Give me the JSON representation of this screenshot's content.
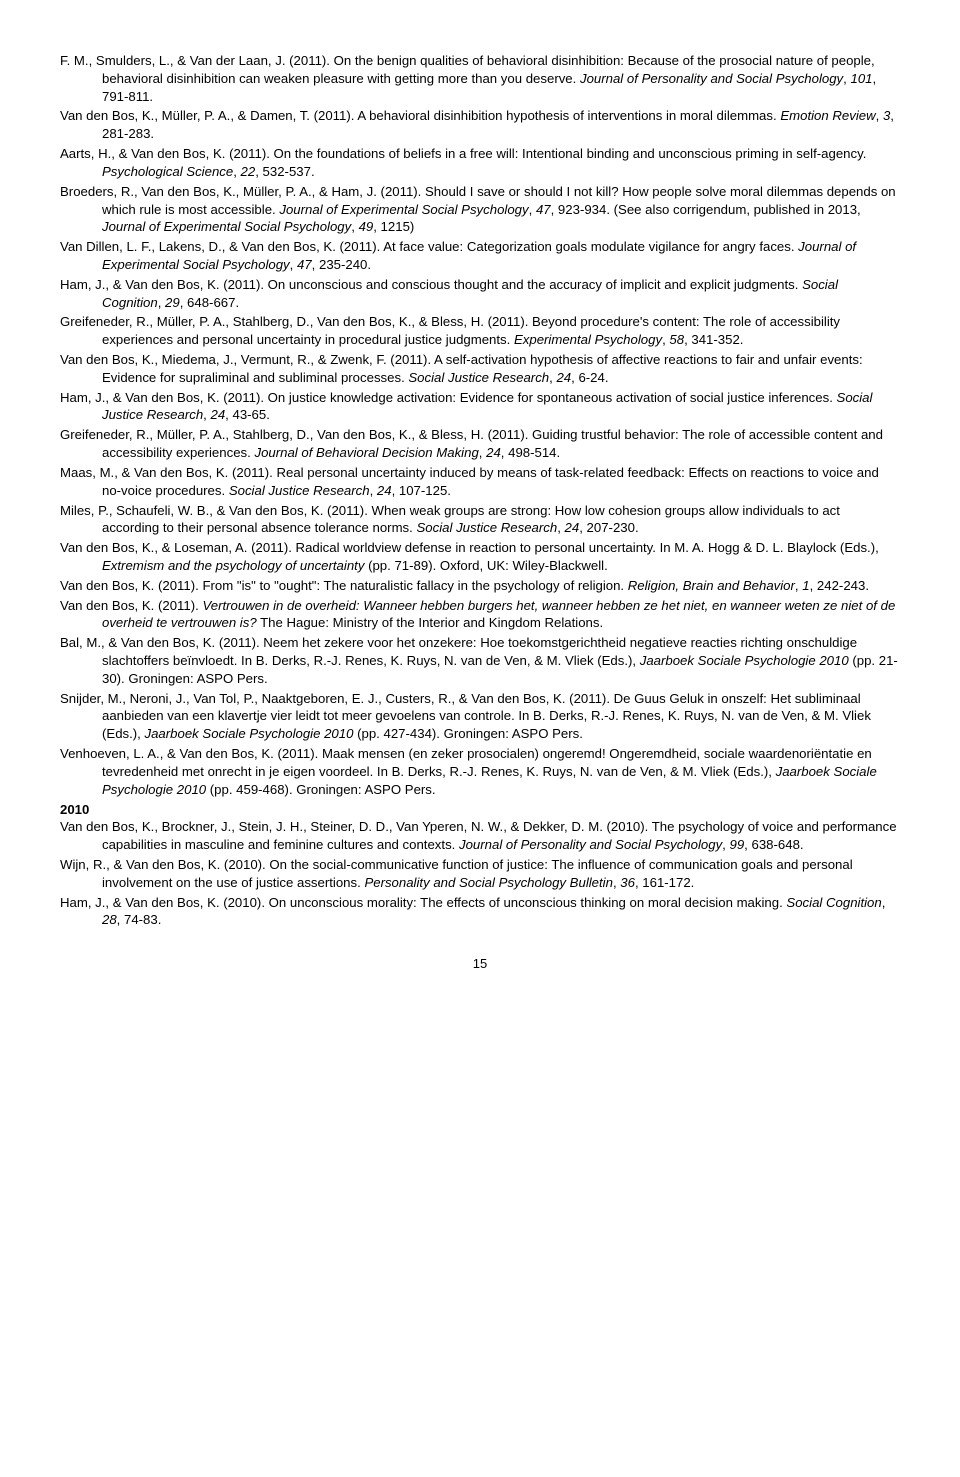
{
  "references": [
    {
      "html": "F. M., Smulders, L., & Van der Laan, J. (2011). On the benign qualities of behavioral disinhibition: Because of the prosocial nature of people, behavioral disinhibition can weaken pleasure with getting more than you deserve. <em>Journal of Personality and Social Psychology</em>, <em>101</em>, 791-811."
    },
    {
      "html": "Van den Bos, K., Müller, P. A., & Damen, T. (2011). A behavioral disinhibition hypothesis of interventions in moral dilemmas. <em>Emotion Review</em>, <em>3</em>, 281-283."
    },
    {
      "html": "Aarts, H., & Van den Bos, K. (2011). On the foundations of beliefs in a free will: Intentional binding and unconscious priming in self-agency. <em>Psychological Science</em>, <em>22</em>, 532-537."
    },
    {
      "html": "Broeders, R., Van den Bos, K., Müller, P. A., & Ham, J. (2011). Should I save or should I not kill? How people solve moral dilemmas depends on which rule is most accessible. <em>Journal of Experimental Social Psychology</em>, <em>47</em>, 923-934. (See also corrigendum, published in 2013, <em>Journal of Experimental Social Psychology</em>, <em>49</em>, 1215)"
    },
    {
      "html": "Van Dillen, L. F., Lakens, D., & Van den Bos, K. (2011). At face value: Categorization goals modulate vigilance for angry faces. <em>Journal of Experimental Social Psychology</em>, <em>47</em>, 235-240."
    },
    {
      "html": "Ham, J., & Van den Bos, K. (2011). On unconscious and conscious thought and the accuracy of implicit and explicit judgments. <em>Social Cognition</em>, <em>29</em>, 648-667."
    },
    {
      "html": "Greifeneder, R., Müller, P. A., Stahlberg, D., Van den Bos, K., & Bless, H. (2011). Beyond procedure's content: The role of accessibility experiences and personal uncertainty in procedural justice judgments. <em>Experimental Psychology</em>, <em>58</em>, 341-352."
    },
    {
      "html": "Van den Bos, K., Miedema, J., Vermunt, R., & Zwenk, F. (2011). A self-activation hypothesis of affective reactions to fair and unfair events: Evidence for supraliminal and subliminal processes. <em>Social Justice Research</em>, <em>24</em>, 6-24."
    },
    {
      "html": "Ham, J., & Van den Bos, K. (2011). On justice knowledge activation: Evidence for spontaneous activation of social justice inferences. <em>Social Justice Research</em>, <em>24</em>, 43-65."
    },
    {
      "html": "Greifeneder, R., Müller, P. A., Stahlberg, D., Van den Bos, K., & Bless, H. (2011). Guiding trustful behavior: The role of accessible content and accessibility experiences. <em>Journal of Behavioral Decision Making</em>, <em>24</em>, 498-514."
    },
    {
      "html": "Maas, M., & Van den Bos, K. (2011). Real personal uncertainty induced by means of task-related feedback: Effects on reactions to voice and no-voice procedures. <em>Social Justice Research</em>, <em>24</em>, 107-125."
    },
    {
      "html": "Miles, P., Schaufeli, W. B., & Van den Bos, K. (2011). When weak groups are strong: How low cohesion groups allow individuals to act according to their personal absence tolerance norms. <em>Social Justice Research</em>, <em>24</em>, 207-230."
    },
    {
      "html": "Van den Bos, K., & Loseman, A. (2011). Radical worldview defense in reaction to personal uncertainty. In M. A. Hogg & D. L. Blaylock (Eds.), <em>Extremism and the psychology of uncertainty</em> (pp. 71-89). Oxford, UK: Wiley-Blackwell."
    },
    {
      "html": "Van den Bos, K. (2011). From \"is\" to \"ought\": The naturalistic fallacy in the psychology of religion. <em>Religion, Brain and Behavior</em>, <em>1</em>, 242-243."
    },
    {
      "html": "Van den Bos, K. (2011). <em>Vertrouwen in de overheid: Wanneer hebben burgers het, wanneer hebben ze het niet, en wanneer weten ze niet of de overheid te vertrouwen is?</em> The Hague: Ministry of the Interior and Kingdom Relations."
    },
    {
      "html": "Bal, M., & Van den Bos, K. (2011). Neem het zekere voor het onzekere: Hoe toekomstgerichtheid negatieve reacties richting onschuldige slachtoffers beïnvloedt. In B. Derks, R.-J. Renes, K. Ruys, N. van de Ven, & M. Vliek (Eds.), <em>Jaarboek Sociale Psychologie 2010</em> (pp. 21-30). Groningen: ASPO Pers."
    },
    {
      "html": "Snijder, M., Neroni, J., Van Tol, P., Naaktgeboren, E. J., Custers, R., & Van den Bos, K. (2011). De Guus Geluk in onszelf: Het subliminaal aanbieden van een klavertje vier leidt tot meer gevoelens van controle. In B. Derks, R.-J. Renes, K. Ruys, N. van de Ven, & M. Vliek (Eds.), <em>Jaarboek Sociale Psychologie 2010</em> (pp. 427-434). Groningen: ASPO Pers."
    },
    {
      "html": "Venhoeven, L. A., & Van den Bos, K. (2011). Maak mensen (en zeker prosocialen) ongeremd! Ongeremdheid, sociale waardenoriëntatie en tevredenheid met onrecht in je eigen voordeel. In B. Derks, R.-J. Renes, K. Ruys, N. van de Ven, & M. Vliek (Eds.), <em>Jaarboek Sociale Psychologie 2010</em> (pp. 459-468). Groningen: ASPO Pers."
    }
  ],
  "year_heading": "2010",
  "references2": [
    {
      "html": "Van den Bos, K., Brockner, J., Stein, J. H., Steiner, D. D., Van Yperen, N. W., & Dekker, D. M. (2010). The psychology of voice and performance capabilities in masculine and feminine cultures and contexts. <em>Journal of Personality and Social Psychology</em>, <em>99</em>, 638-648."
    },
    {
      "html": "Wijn, R., & Van den Bos, K. (2010). On the social-communicative function of justice: The influence of communication goals and personal involvement on the use of justice assertions. <em>Personality and Social Psychology Bulletin</em>, <em>36</em>, 161-172."
    },
    {
      "html": "Ham, J., & Van den Bos, K. (2010). On unconscious morality: The effects of unconscious thinking on moral decision making. <em>Social Cognition</em>, <em>28</em>, 74-83."
    }
  ],
  "page_number": "15"
}
